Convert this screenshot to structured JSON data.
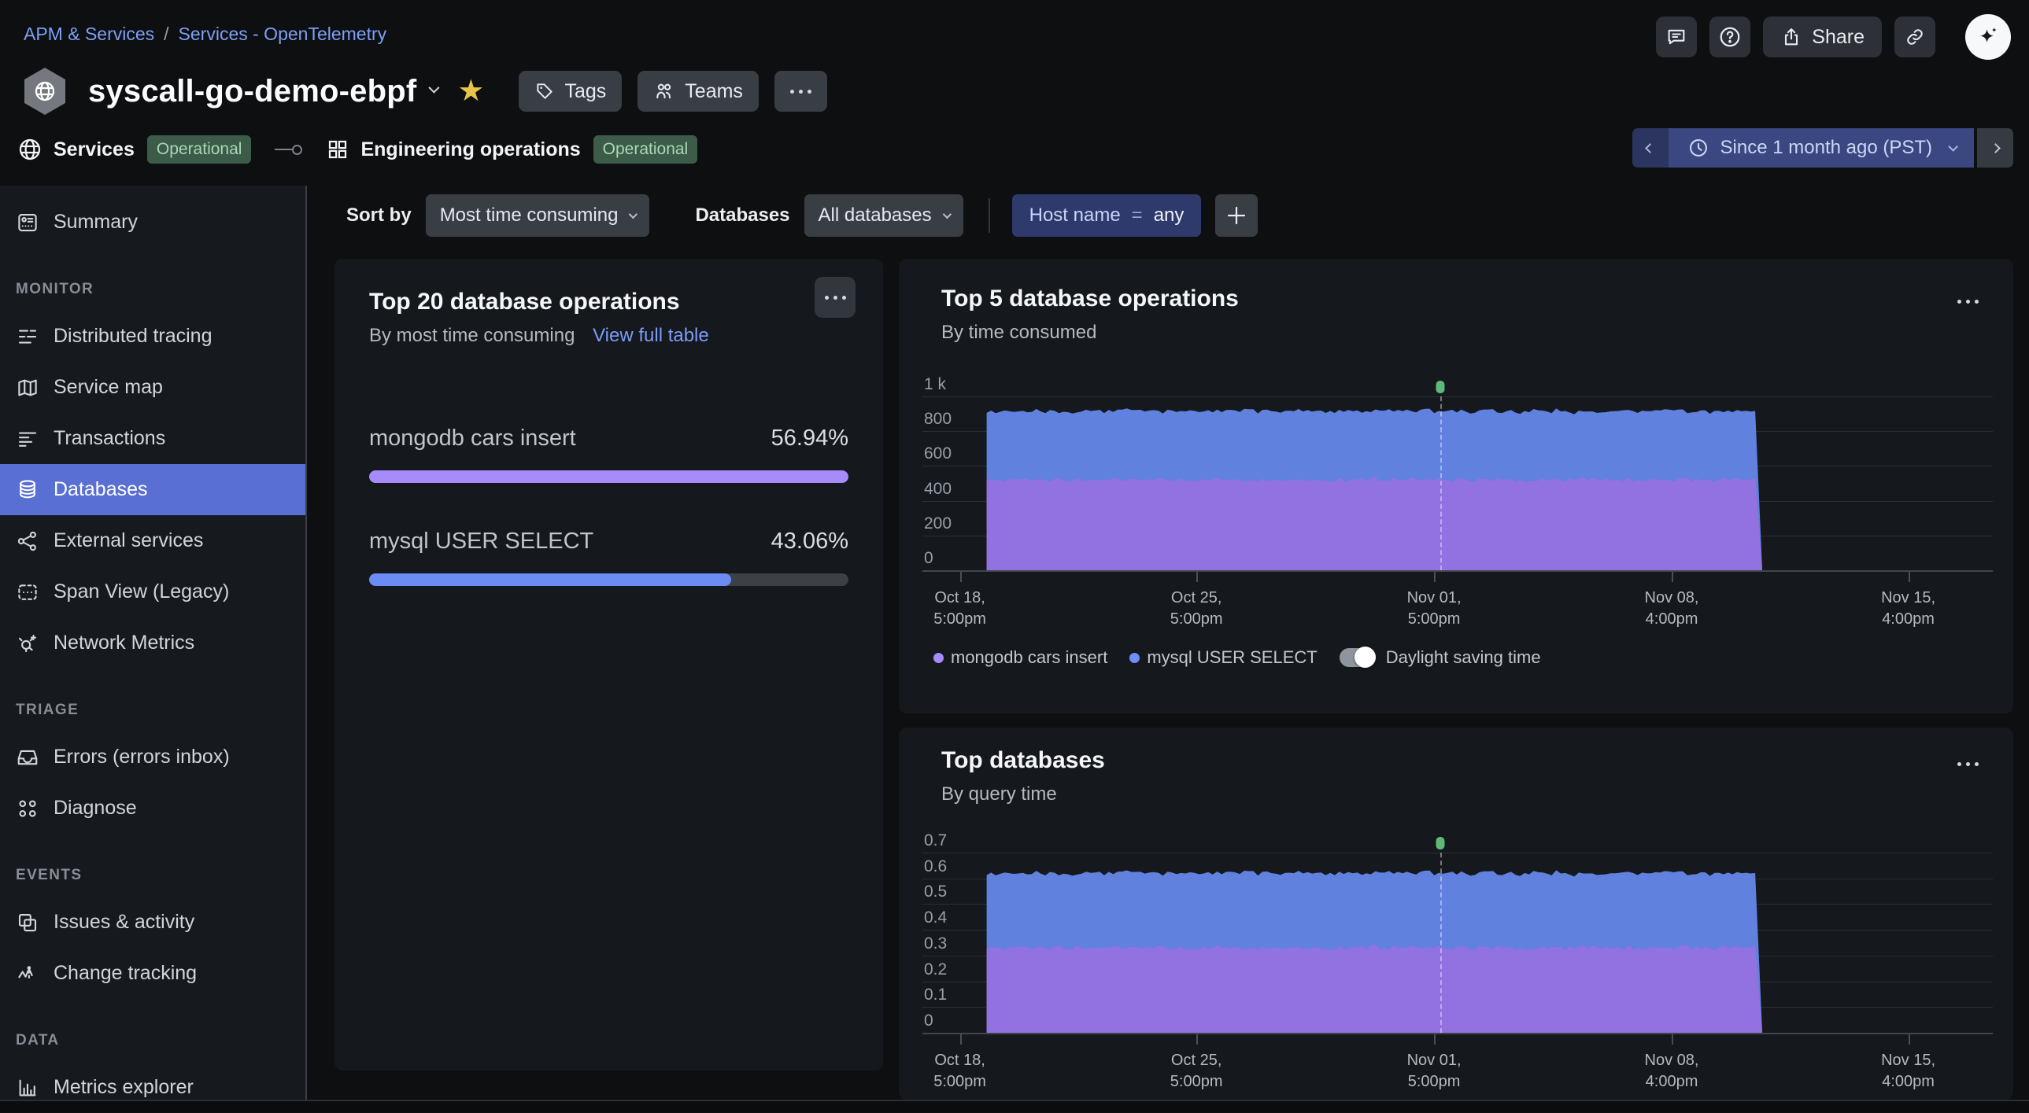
{
  "breadcrumb": {
    "item1": "APM & Services",
    "separator": "/",
    "item2": "Services - OpenTelemetry"
  },
  "header": {
    "service_name": "syscall-go-demo-ebpf",
    "tags_button": "Tags",
    "teams_button": "Teams",
    "share_button": "Share",
    "entity_bar": {
      "services_label": "Services",
      "services_status": "Operational",
      "org_label": "Engineering operations",
      "org_status": "Operational"
    },
    "time_picker": {
      "label": "Since 1 month ago (PST)"
    }
  },
  "sidebar": {
    "sections": [
      {
        "header": "",
        "items": [
          {
            "label": "Summary"
          }
        ]
      },
      {
        "header": "MONITOR",
        "items": [
          {
            "label": "Distributed tracing"
          },
          {
            "label": "Service map"
          },
          {
            "label": "Transactions"
          },
          {
            "label": "Databases",
            "selected": true
          },
          {
            "label": "External services"
          },
          {
            "label": "Span View (Legacy)"
          },
          {
            "label": "Network Metrics"
          }
        ]
      },
      {
        "header": "TRIAGE",
        "items": [
          {
            "label": "Errors (errors inbox)"
          },
          {
            "label": "Diagnose"
          }
        ]
      },
      {
        "header": "EVENTS",
        "items": [
          {
            "label": "Issues & activity"
          },
          {
            "label": "Change tracking"
          }
        ]
      },
      {
        "header": "DATA",
        "items": [
          {
            "label": "Metrics explorer"
          }
        ]
      }
    ]
  },
  "toolbar": {
    "sort_by_label": "Sort by",
    "sort_value": "Most time consuming",
    "databases_label": "Databases",
    "databases_value": "All databases",
    "filter": {
      "field": "Host name",
      "operator": "=",
      "value": "any"
    }
  },
  "top20_panel": {
    "title": "Top 20 database operations",
    "subtitle": "By most time consuming",
    "link": "View full table",
    "rows": [
      {
        "label": "mongodb cars insert",
        "value": "56.94%",
        "fraction": 1.0,
        "color": "#a78bfa"
      },
      {
        "label": "mysql USER SELECT",
        "value": "43.06%",
        "fraction": 0.756,
        "color": "#6b8cf2"
      }
    ]
  },
  "chart_data": [
    {
      "type": "area",
      "stacked": true,
      "title": "Top 5 database operations",
      "subtitle": "By time consumed",
      "ymax": 1000,
      "yticks": [
        "1 k",
        "800",
        "600",
        "400",
        "200",
        "0"
      ],
      "x_ticks": [
        {
          "date": "Oct 18,",
          "time": "5:00pm",
          "f": 0.035
        },
        {
          "date": "Oct 25,",
          "time": "5:00pm",
          "f": 0.256
        },
        {
          "date": "Nov 01,",
          "time": "5:00pm",
          "f": 0.478
        },
        {
          "date": "Nov 08,",
          "time": "4:00pm",
          "f": 0.7
        },
        {
          "date": "Nov 15,",
          "time": "4:00pm",
          "f": 0.921
        }
      ],
      "series": [
        {
          "name": "mongodb cars insert",
          "color": "#9271e1",
          "legend_color": "#a78bfa",
          "value": 520,
          "jitter": 16
        },
        {
          "name": "mysql USER SELECT",
          "color": "#6081de",
          "legend_color": "#6e8ff5",
          "value": 395,
          "jitter": 18
        }
      ],
      "data_start_frac": 0.06,
      "data_end_frac": 0.778,
      "dst_marker": {
        "f": 0.484,
        "color": "#5fb877"
      },
      "legend_toggle_label": "Daylight saving time",
      "legend_toggle_state": "on",
      "grid": true,
      "legend_position": "bottom-left"
    },
    {
      "type": "area",
      "stacked": true,
      "title": "Top databases",
      "subtitle": "By query time",
      "ymax": 0.7,
      "yticks": [
        "0.7",
        "0.6",
        "0.5",
        "0.4",
        "0.3",
        "0.2",
        "0.1",
        "0"
      ],
      "x_ticks": [
        {
          "date": "Oct 18,",
          "time": "5:00pm",
          "f": 0.035
        },
        {
          "date": "Oct 25,",
          "time": "5:00pm",
          "f": 0.256
        },
        {
          "date": "Nov 01,",
          "time": "5:00pm",
          "f": 0.478
        },
        {
          "date": "Nov 08,",
          "time": "4:00pm",
          "f": 0.7
        },
        {
          "date": "Nov 15,",
          "time": "4:00pm",
          "f": 0.921
        }
      ],
      "series": [
        {
          "name": "",
          "color": "#9271e1",
          "legend_color": "#a78bfa",
          "value": 0.33,
          "jitter": 0.012
        },
        {
          "name": "",
          "color": "#6081de",
          "legend_color": "#6e8ff5",
          "value": 0.29,
          "jitter": 0.013
        }
      ],
      "data_start_frac": 0.06,
      "data_end_frac": 0.778,
      "dst_marker": {
        "f": 0.484,
        "color": "#5fb877"
      },
      "grid": true
    }
  ],
  "colors": {
    "accent_selected": "#5a6fd4",
    "link": "#7b9cf7",
    "badge_bg": "#3d5b49",
    "badge_text": "#a8d8b6",
    "time_picker_bg": "#3a4780",
    "filter_pill_bg": "#2f3a6c",
    "card_bg": "#15181d",
    "page_bg": "#0d0f11",
    "star": "#e8c34b",
    "dst_marker": "#5fb877"
  }
}
